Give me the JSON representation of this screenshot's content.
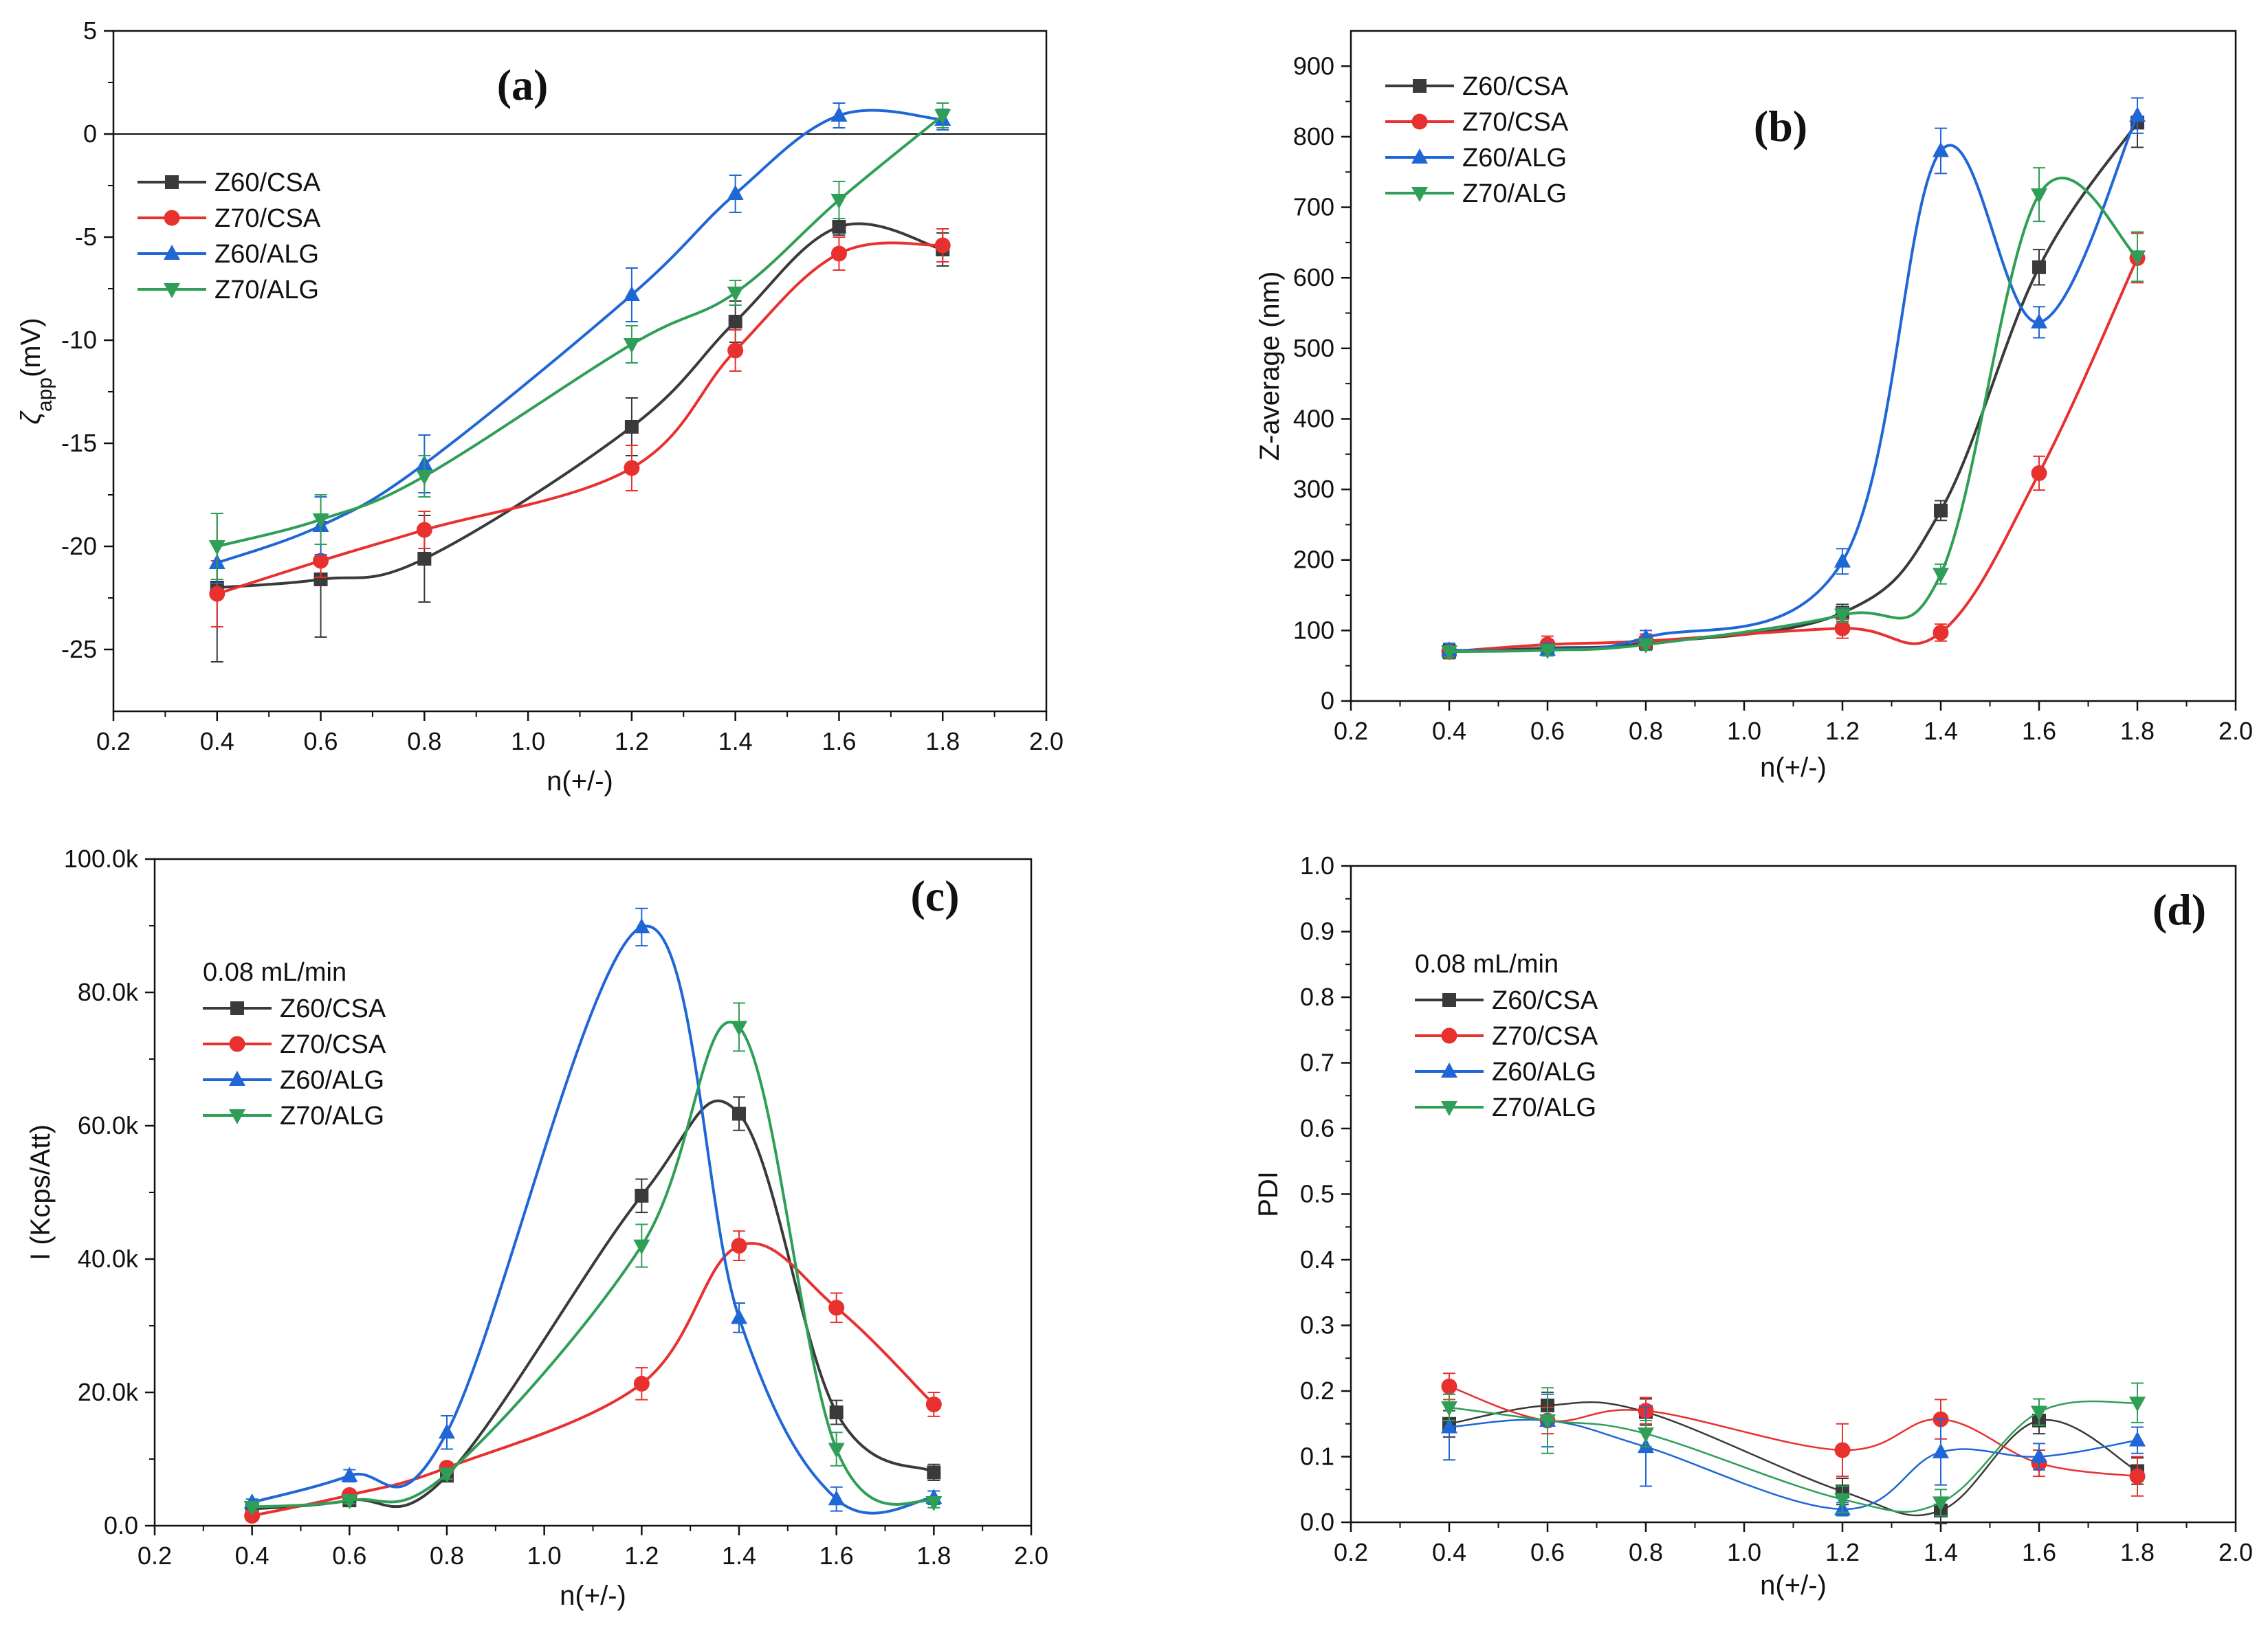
{
  "colors": {
    "Z60/CSA": "#3a3a3a",
    "Z70/CSA": "#e8312f",
    "Z60/ALG": "#1f66d6",
    "Z70/ALG": "#2f9e57"
  },
  "markers": {
    "Z60/CSA": "square",
    "Z70/CSA": "circle",
    "Z60/ALG": "triangle-up",
    "Z70/ALG": "triangle-down"
  },
  "chart_data": [
    {
      "id": "a",
      "type": "line",
      "panel_label": "(a)",
      "xlabel": "n(+/-)",
      "ylabel_main": "ζ",
      "ylabel_sub": "app",
      "ylabel_unit": "(mV)",
      "xlim": [
        0.2,
        2.0
      ],
      "ylim": [
        -28,
        5
      ],
      "xticks": [
        0.2,
        0.4,
        0.6,
        0.8,
        1.0,
        1.2,
        1.4,
        1.6,
        1.8,
        2.0
      ],
      "xtick_labels": [
        "0.2",
        "0.4",
        "0.6",
        "0.8",
        "1.0",
        "1.2",
        "1.4",
        "1.6",
        "1.8",
        "2.0"
      ],
      "yticks": [
        5,
        0,
        -5,
        -10,
        -15,
        -20,
        -25
      ],
      "ytick_labels": [
        "5",
        "0",
        "-5",
        "-10",
        "-15",
        "-20",
        "-25"
      ],
      "reference_line": 0,
      "legend_title": "",
      "x": [
        0.4,
        0.6,
        0.8,
        1.2,
        1.4,
        1.6,
        1.8
      ],
      "series": [
        {
          "name": "Z60/CSA",
          "values": [
            -22.0,
            -21.6,
            -20.6,
            -14.2,
            -9.1,
            -4.5,
            -5.6
          ],
          "errors": [
            3.6,
            2.8,
            2.1,
            1.4,
            1.0,
            0.4,
            0.8
          ]
        },
        {
          "name": "Z70/CSA",
          "values": [
            -22.3,
            -20.7,
            -19.2,
            -16.2,
            -10.5,
            -5.8,
            -5.4
          ],
          "errors": [
            1.6,
            0.8,
            0.9,
            1.1,
            1.0,
            0.8,
            0.8
          ]
        },
        {
          "name": "Z60/ALG",
          "values": [
            -20.8,
            -19.0,
            -16.0,
            -7.8,
            -2.9,
            0.9,
            0.7
          ],
          "errors": [
            1.0,
            1.4,
            1.4,
            1.3,
            0.9,
            0.6,
            0.5
          ]
        },
        {
          "name": "Z70/ALG",
          "values": [
            -20.0,
            -18.7,
            -16.6,
            -10.2,
            -7.7,
            -3.2,
            0.9
          ],
          "errors": [
            1.6,
            1.2,
            1.0,
            0.9,
            0.6,
            0.9,
            0.6
          ]
        }
      ]
    },
    {
      "id": "b",
      "type": "line",
      "panel_label": "(b)",
      "xlabel": "n(+/-)",
      "ylabel_main": "Z-average (nm)",
      "ylabel_sub": "",
      "ylabel_unit": "",
      "xlim": [
        0.2,
        2.0
      ],
      "ylim": [
        0,
        950
      ],
      "xticks": [
        0.2,
        0.4,
        0.6,
        0.8,
        1.0,
        1.2,
        1.4,
        1.6,
        1.8,
        2.0
      ],
      "xtick_labels": [
        "0.2",
        "0.4",
        "0.6",
        "0.8",
        "1.0",
        "1.2",
        "1.4",
        "1.6",
        "1.8",
        "2.0"
      ],
      "yticks": [
        0,
        100,
        200,
        300,
        400,
        500,
        600,
        700,
        800,
        900
      ],
      "ytick_labels": [
        "0",
        "100",
        "200",
        "300",
        "400",
        "500",
        "600",
        "700",
        "800",
        "900"
      ],
      "reference_line": null,
      "legend_title": "",
      "x": [
        0.4,
        0.6,
        0.8,
        1.2,
        1.4,
        1.6,
        1.8
      ],
      "series": [
        {
          "name": "Z60/CSA",
          "values": [
            70,
            75,
            82,
            125,
            270,
            615,
            820
          ],
          "errors": [
            10,
            8,
            10,
            12,
            14,
            25,
            35
          ]
        },
        {
          "name": "Z70/CSA",
          "values": [
            70,
            80,
            85,
            103,
            97,
            323,
            628
          ],
          "errors": [
            8,
            12,
            10,
            14,
            12,
            24,
            35
          ]
        },
        {
          "name": "Z60/ALG",
          "values": [
            72,
            73,
            90,
            198,
            780,
            537,
            830
          ],
          "errors": [
            10,
            8,
            10,
            18,
            32,
            22,
            25
          ]
        },
        {
          "name": "Z70/ALG",
          "values": [
            70,
            72,
            80,
            122,
            180,
            718,
            630
          ],
          "errors": [
            8,
            8,
            8,
            10,
            14,
            38,
            35
          ]
        }
      ]
    },
    {
      "id": "c",
      "type": "line",
      "panel_label": "(c)",
      "xlabel": "n(+/-)",
      "ylabel_main": "I (Kcps/Att)",
      "ylabel_sub": "",
      "ylabel_unit": "",
      "xlim": [
        0.2,
        2.0
      ],
      "ylim": [
        0,
        100000
      ],
      "xticks": [
        0.2,
        0.4,
        0.6,
        0.8,
        1.0,
        1.2,
        1.4,
        1.6,
        1.8,
        2.0
      ],
      "xtick_labels": [
        "0.2",
        "0.4",
        "0.6",
        "0.8",
        "1.0",
        "1.2",
        "1.4",
        "1.6",
        "1.8",
        "2.0"
      ],
      "yticks": [
        0,
        20000,
        40000,
        60000,
        80000,
        100000
      ],
      "ytick_labels": [
        "0.0",
        "20.0k",
        "40.0k",
        "60.0k",
        "80.0k",
        "100.0k"
      ],
      "reference_line": null,
      "legend_title": "0.08 mL/min",
      "x": [
        0.4,
        0.6,
        0.8,
        1.2,
        1.4,
        1.6,
        1.8
      ],
      "series": [
        {
          "name": "Z60/CSA",
          "values": [
            2500,
            3800,
            7500,
            49500,
            61800,
            17000,
            8000
          ],
          "errors": [
            600,
            500,
            700,
            2500,
            2500,
            1800,
            1200
          ]
        },
        {
          "name": "Z70/CSA",
          "values": [
            1500,
            4600,
            8700,
            21300,
            42000,
            32700,
            18200
          ],
          "errors": [
            500,
            600,
            800,
            2400,
            2200,
            2200,
            1800
          ]
        },
        {
          "name": "Z60/ALG",
          "values": [
            3500,
            7500,
            14000,
            89800,
            31200,
            4000,
            4200
          ],
          "errors": [
            500,
            900,
            2500,
            2800,
            2200,
            1800,
            1000
          ]
        },
        {
          "name": "Z70/ALG",
          "values": [
            2800,
            3800,
            7800,
            42000,
            74800,
            11500,
            3500
          ],
          "errors": [
            500,
            500,
            800,
            3200,
            3600,
            2500,
            800
          ]
        }
      ]
    },
    {
      "id": "d",
      "type": "line",
      "panel_label": "(d)",
      "xlabel": "n(+/-)",
      "ylabel_main": "PDI",
      "ylabel_sub": "",
      "ylabel_unit": "",
      "xlim": [
        0.2,
        2.0
      ],
      "ylim": [
        0,
        1.0
      ],
      "xticks": [
        0.2,
        0.4,
        0.6,
        0.8,
        1.0,
        1.2,
        1.4,
        1.6,
        1.8,
        2.0
      ],
      "xtick_labels": [
        "0.2",
        "0.4",
        "0.6",
        "0.8",
        "1.0",
        "1.2",
        "1.4",
        "1.6",
        "1.8",
        "2.0"
      ],
      "yticks": [
        0.0,
        0.1,
        0.2,
        0.3,
        0.4,
        0.5,
        0.6,
        0.7,
        0.8,
        0.9,
        1.0
      ],
      "ytick_labels": [
        "0.0",
        "0.1",
        "0.2",
        "0.3",
        "0.4",
        "0.5",
        "0.6",
        "0.7",
        "0.8",
        "0.9",
        "1.0"
      ],
      "reference_line": null,
      "legend_title": "0.08 mL/min",
      "x": [
        0.4,
        0.6,
        0.8,
        1.2,
        1.4,
        1.6,
        1.8
      ],
      "series": [
        {
          "name": "Z60/CSA",
          "values": [
            0.15,
            0.178,
            0.168,
            0.047,
            0.018,
            0.155,
            0.078
          ],
          "errors": [
            0.02,
            0.02,
            0.02,
            0.02,
            0.02,
            0.02,
            0.02
          ]
        },
        {
          "name": "Z70/CSA",
          "values": [
            0.207,
            0.155,
            0.17,
            0.11,
            0.157,
            0.09,
            0.07
          ],
          "errors": [
            0.02,
            0.02,
            0.02,
            0.04,
            0.03,
            0.02,
            0.03
          ]
        },
        {
          "name": "Z60/ALG",
          "values": [
            0.145,
            0.155,
            0.115,
            0.02,
            0.107,
            0.1,
            0.125
          ],
          "errors": [
            0.05,
            0.04,
            0.06,
            0.01,
            0.05,
            0.02,
            0.02
          ]
        },
        {
          "name": "Z70/ALG",
          "values": [
            0.175,
            0.155,
            0.135,
            0.035,
            0.03,
            0.168,
            0.182
          ],
          "errors": [
            0.02,
            0.05,
            0.02,
            0.02,
            0.02,
            0.02,
            0.03
          ]
        }
      ]
    }
  ]
}
